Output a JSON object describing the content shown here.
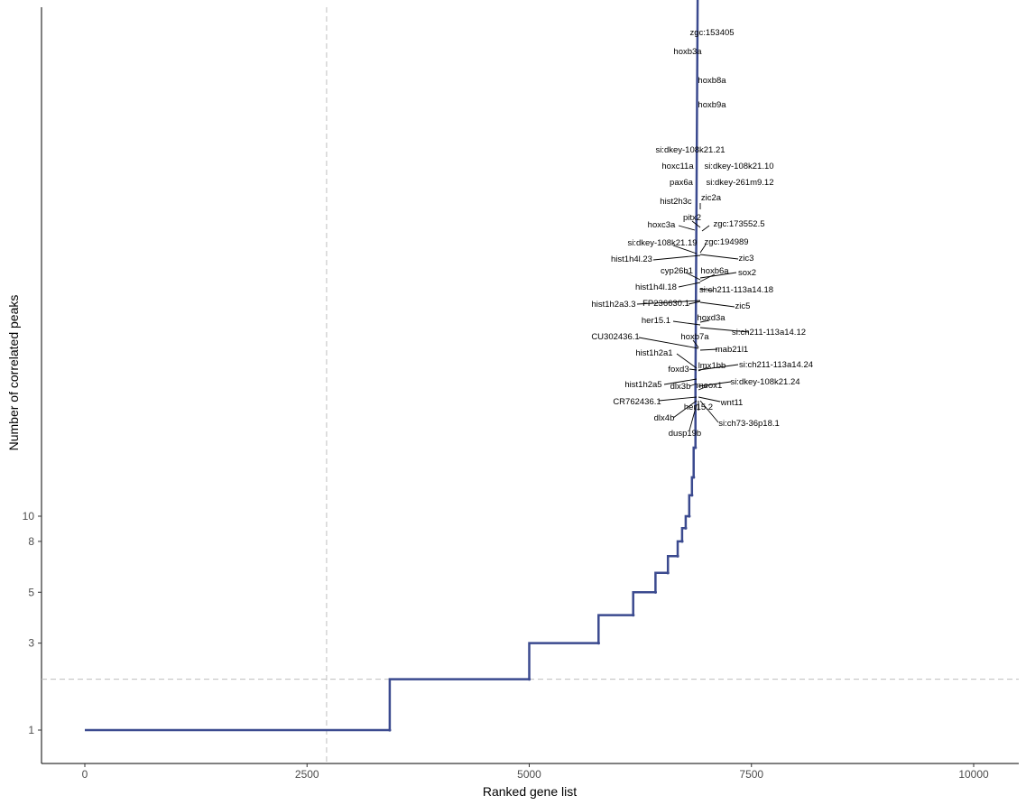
{
  "chart_data": {
    "type": "line",
    "title": "",
    "xlabel": "Ranked gene list",
    "ylabel": "Number of correlated peaks",
    "xlim": [
      -490,
      10490
    ],
    "x_ticks": [
      0,
      2500,
      5000,
      7500,
      10000
    ],
    "y_ticks": [
      1,
      3,
      5,
      8,
      10
    ],
    "y_scale": "log1p",
    "series_color": "#3b4a8f",
    "reference_lines": {
      "x": 2720,
      "y": 2
    },
    "series": [
      {
        "x": [
          0,
          3430,
          3430,
          5000,
          5000,
          5780,
          5780,
          6170,
          6170,
          6420,
          6420,
          6560,
          6560,
          6670,
          6670,
          6720,
          6720,
          6760,
          6760,
          6800,
          6800,
          6830,
          6830,
          6850,
          6850,
          6870,
          6870,
          6900
        ],
        "y": [
          1,
          1,
          2,
          2,
          3,
          3,
          4,
          4,
          5,
          5,
          6,
          6,
          7,
          7,
          8,
          8,
          9,
          9,
          10,
          10,
          12,
          12,
          14,
          14,
          18,
          18,
          30,
          1250
        ]
      }
    ],
    "annotations": [
      {
        "label": "zgc:153405",
        "y": 1250,
        "x": 6900
      },
      {
        "label": "hoxb3a",
        "y": 1000,
        "x": 6900
      },
      {
        "label": "hoxb8a",
        "y": 720,
        "x": 6900
      },
      {
        "label": "hoxb9a",
        "y": 560,
        "x": 6900
      },
      {
        "label": "si:dkey-108k21.21",
        "y": 350,
        "x": 6900
      },
      {
        "label": "hoxc11a",
        "y": 290,
        "x": 6900
      },
      {
        "label": "si:dkey-108k21.10",
        "y": 290,
        "x": 6900
      },
      {
        "label": "pax6a",
        "y": 250,
        "x": 6900
      },
      {
        "label": "si:dkey-261m9.12",
        "y": 250,
        "x": 6900
      },
      {
        "label": "hist2h3c",
        "y": 195,
        "x": 6895
      },
      {
        "label": "zic2a",
        "y": 200,
        "x": 6895
      },
      {
        "label": "pitx2",
        "y": 160,
        "x": 6890
      },
      {
        "label": "hoxc3a",
        "y": 140,
        "x": 6890
      },
      {
        "label": "zgc:173552.5",
        "y": 140,
        "x": 6890
      },
      {
        "label": "si:dkey-108k21.19",
        "y": 120,
        "x": 6885
      },
      {
        "label": "zgc:194989",
        "y": 120,
        "x": 6885
      },
      {
        "label": "hist1h4l.23",
        "y": 100,
        "x": 6880
      },
      {
        "label": "zic3",
        "y": 100,
        "x": 6880
      },
      {
        "label": "cyp26b1",
        "y": 90,
        "x": 6880
      },
      {
        "label": "hoxb6a",
        "y": 90,
        "x": 6880
      },
      {
        "label": "sox2",
        "y": 90,
        "x": 6880
      },
      {
        "label": "hist1h4l.18",
        "y": 78,
        "x": 6875
      },
      {
        "label": "si:ch211-113a14.18",
        "y": 78,
        "x": 6875
      },
      {
        "label": "hist1h2a3.3",
        "y": 65,
        "x": 6875
      },
      {
        "label": "FP236630.1",
        "y": 65,
        "x": 6875
      },
      {
        "label": "zic5",
        "y": 65,
        "x": 6875
      },
      {
        "label": "hoxd3a",
        "y": 55,
        "x": 6870
      },
      {
        "label": "her15.1",
        "y": 55,
        "x": 6870
      },
      {
        "label": "si:ch211-113a14.12",
        "y": 50,
        "x": 6870
      },
      {
        "label": "CU302436.1",
        "y": 45,
        "x": 6865
      },
      {
        "label": "hoxb7a",
        "y": 45,
        "x": 6865
      },
      {
        "label": "mab21l1",
        "y": 45,
        "x": 6865
      },
      {
        "label": "hist1h2a1",
        "y": 38,
        "x": 6860
      },
      {
        "label": "foxd3",
        "y": 36,
        "x": 6860
      },
      {
        "label": "lmx1bb",
        "y": 36,
        "x": 6860
      },
      {
        "label": "si:ch211-113a14.24",
        "y": 36,
        "x": 6860
      },
      {
        "label": "hist1h2a5",
        "y": 32,
        "x": 6855
      },
      {
        "label": "dlx3b",
        "y": 32,
        "x": 6855
      },
      {
        "label": "meox1",
        "y": 32,
        "x": 6855
      },
      {
        "label": "si:dkey-108k21.24",
        "y": 32,
        "x": 6855
      },
      {
        "label": "CR762436.1",
        "y": 30,
        "x": 6850
      },
      {
        "label": "wnt11",
        "y": 30,
        "x": 6850
      },
      {
        "label": "her15.2",
        "y": 30,
        "x": 6850
      },
      {
        "label": "dlx4b",
        "y": 30,
        "x": 6850
      },
      {
        "label": "si:ch73-36p18.1",
        "y": 30,
        "x": 6850
      },
      {
        "label": "dusp19b",
        "y": 30,
        "x": 6850
      }
    ]
  }
}
